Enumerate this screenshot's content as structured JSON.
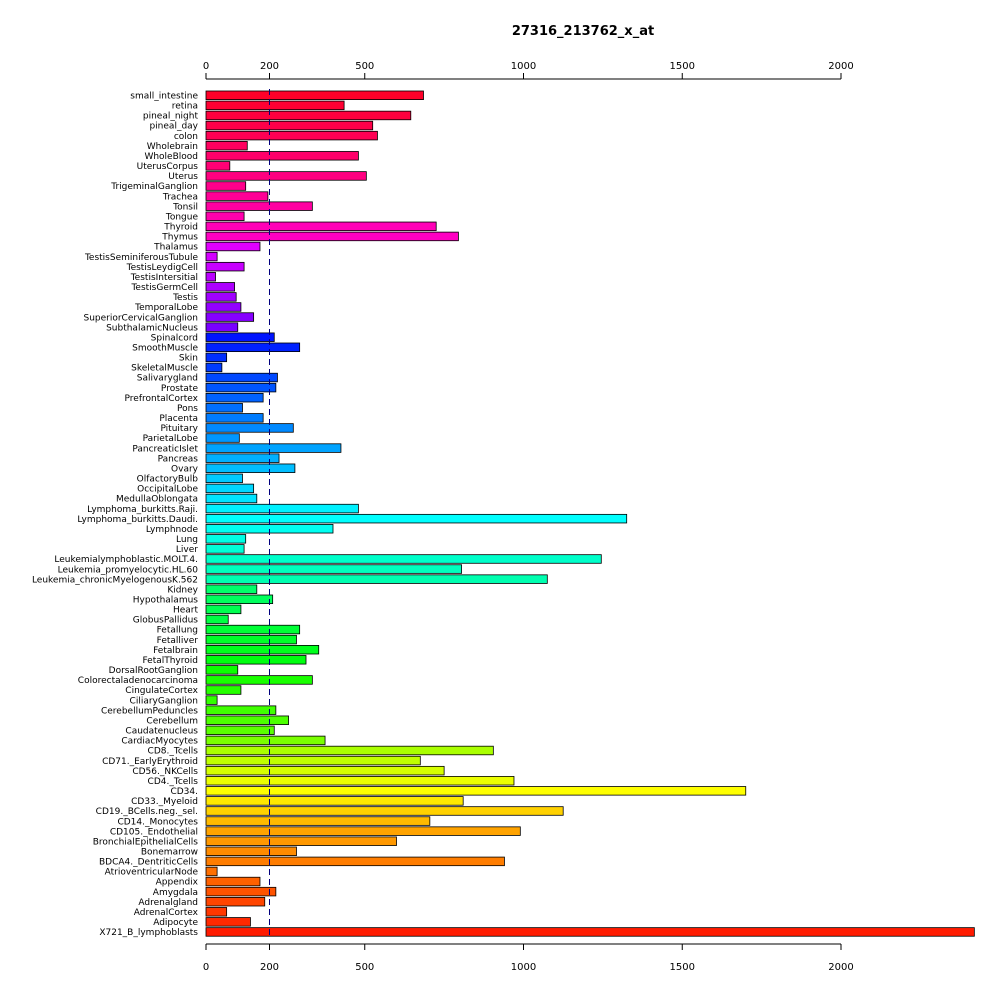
{
  "chart_data": {
    "type": "bar",
    "orientation": "horizontal",
    "title": "27316_213762_x_at",
    "xlabel": "",
    "ylabel": "",
    "xlim": [
      0,
      2420
    ],
    "xticks": [
      0,
      200,
      500,
      1000,
      1500,
      2000
    ],
    "reference_line": 200,
    "grid": false,
    "categories": [
      "small_intestine",
      "retina",
      "pineal_night",
      "pineal_day",
      "colon",
      "Wholebrain",
      "WholeBlood",
      "UterusCorpus",
      "Uterus",
      "TrigeminalGanglion",
      "Trachea",
      "Tonsil",
      "Tongue",
      "Thyroid",
      "Thymus",
      "Thalamus",
      "TestisSeminiferousTubule",
      "TestisLeydigCell",
      "TestisIntersitial",
      "TestisGermCell",
      "Testis",
      "TemporalLobe",
      "SuperiorCervicalGanglion",
      "SubthalamicNucleus",
      "Spinalcord",
      "SmoothMuscle",
      "Skin",
      "SkeletalMuscle",
      "Salivarygland",
      "Prostate",
      "PrefrontalCortex",
      "Pons",
      "Placenta",
      "Pituitary",
      "ParietalLobe",
      "PancreaticIslet",
      "Pancreas",
      "Ovary",
      "OlfactoryBulb",
      "OccipitalLobe",
      "MedullaOblongata",
      "Lymphoma_burkitts.Raji.",
      "Lymphoma_burkitts.Daudi.",
      "Lymphnode",
      "Lung",
      "Liver",
      "Leukemialymphoblastic.MOLT.4.",
      "Leukemia_promyelocytic.HL.60",
      "Leukemia_chronicMyelogenousK.562",
      "Kidney",
      "Hypothalamus",
      "Heart",
      "GlobusPallidus",
      "Fetallung",
      "Fetalliver",
      "Fetalbrain",
      "FetalThyroid",
      "DorsalRootGanglion",
      "Colorectaladenocarcinoma",
      "CingulateCortex",
      "CiliaryGanglion",
      "CerebellumPeduncles",
      "Cerebellum",
      "Caudatenucleus",
      "CardiacMyocytes",
      "CD8._Tcells",
      "CD71._EarlyErythroid",
      "CD56._NKCells",
      "CD4._Tcells",
      "CD34.",
      "CD33._Myeloid",
      "CD19._BCells.neg._sel.",
      "CD14._Monocytes",
      "CD105._Endothelial",
      "BronchialEpithelialCells",
      "Bonemarrow",
      "BDCA4._DentriticCells",
      "AtrioventricularNode",
      "Appendix",
      "Amygdala",
      "Adrenalgland",
      "AdrenalCortex",
      "Adipocyte",
      "X721_B_lymphoblasts"
    ],
    "values": [
      685,
      435,
      645,
      525,
      540,
      130,
      480,
      75,
      505,
      125,
      195,
      335,
      120,
      725,
      795,
      170,
      35,
      120,
      30,
      90,
      95,
      110,
      150,
      100,
      215,
      295,
      65,
      50,
      225,
      220,
      180,
      115,
      180,
      275,
      105,
      425,
      230,
      280,
      115,
      150,
      160,
      480,
      1325,
      400,
      125,
      120,
      1245,
      805,
      1075,
      160,
      210,
      110,
      70,
      295,
      285,
      355,
      315,
      100,
      335,
      110,
      35,
      220,
      260,
      215,
      375,
      905,
      675,
      750,
      970,
      1700,
      810,
      1125,
      705,
      990,
      600,
      285,
      940,
      35,
      170,
      220,
      185,
      65,
      140,
      2420
    ],
    "colors": [
      "#ff0029",
      "#ff0033",
      "#ff003e",
      "#ff0049",
      "#ff0054",
      "#ff005f",
      "#ff006a",
      "#ff0075",
      "#ff0080",
      "#ff008b",
      "#ff0096",
      "#ff00a1",
      "#ff00ac",
      "#ff00b7",
      "#ff00c2",
      "#e100ff",
      "#d400ff",
      "#c700ff",
      "#ba00ff",
      "#ad00ff",
      "#a000ff",
      "#9300ff",
      "#8600ff",
      "#7900ff",
      "#0014ff",
      "#0021ff",
      "#002eff",
      "#003bff",
      "#0048ff",
      "#0055ff",
      "#0062ff",
      "#006fff",
      "#007cff",
      "#0089ff",
      "#0096ff",
      "#00a3ff",
      "#00b0ff",
      "#00bdff",
      "#00caff",
      "#00d7ff",
      "#00e4ff",
      "#00f1ff",
      "#00fffe",
      "#00fff1",
      "#00ffe4",
      "#00ffd7",
      "#00ffca",
      "#00ffbd",
      "#00ffb0",
      "#00ff6a",
      "#00ff5d",
      "#00ff50",
      "#00ff43",
      "#00ff36",
      "#00ff29",
      "#00ff1c",
      "#00ff0f",
      "#0cff00",
      "#19ff00",
      "#26ff00",
      "#33ff00",
      "#40ff00",
      "#4dff00",
      "#5aff00",
      "#7aff00",
      "#aaff00",
      "#c0ff00",
      "#d6ff00",
      "#ecff00",
      "#ffff00",
      "#ffe800",
      "#ffd100",
      "#ffba00",
      "#ffa300",
      "#ff9800",
      "#ff8b00",
      "#ff7d00",
      "#ff6f00",
      "#ff6100",
      "#ff5300",
      "#ff4500",
      "#ff3700",
      "#ff2900",
      "#ff1b00"
    ]
  }
}
